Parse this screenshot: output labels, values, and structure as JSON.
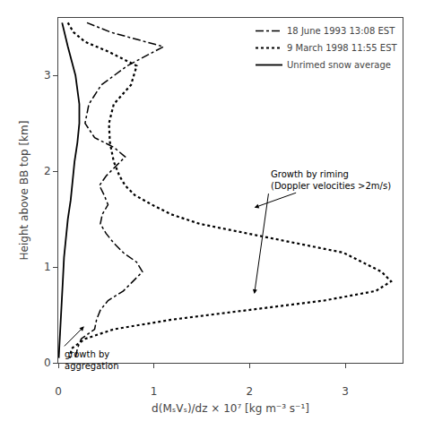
{
  "chart_data": {
    "type": "line",
    "xlabel": "d(MₛVₛ)/dz × 10⁷ [kg m⁻³ s⁻¹]",
    "ylabel": "Height above BB top [km]",
    "xlim": [
      0,
      3.6
    ],
    "ylim": [
      0,
      3.6
    ],
    "xticks": [
      0,
      1,
      2,
      3
    ],
    "yticks": [
      0,
      1,
      2,
      3
    ],
    "grid": false,
    "legend": "upper right",
    "series": [
      {
        "name": "18 June 1993 13:08 EST",
        "color": "#000000",
        "line_style": "dashdot",
        "x": [
          0.3,
          0.55,
          1.1,
          0.72,
          0.45,
          0.32,
          0.28,
          0.38,
          0.58,
          0.7,
          0.6,
          0.5,
          0.43,
          0.48,
          0.52,
          0.46,
          0.44,
          0.5,
          0.58,
          0.68,
          0.82,
          0.88,
          0.78,
          0.68,
          0.52,
          0.44,
          0.4,
          0.38,
          0.24,
          0.2,
          0.18
        ],
        "y": [
          3.55,
          3.45,
          3.3,
          3.1,
          2.9,
          2.7,
          2.5,
          2.35,
          2.25,
          2.15,
          2.05,
          1.95,
          1.85,
          1.75,
          1.65,
          1.55,
          1.45,
          1.35,
          1.25,
          1.15,
          1.05,
          0.95,
          0.85,
          0.75,
          0.65,
          0.55,
          0.45,
          0.35,
          0.25,
          0.15,
          0.05
        ]
      },
      {
        "name": "9 March 1998 11:55 EST",
        "color": "#000000",
        "line_style": "dotted",
        "x": [
          0.1,
          0.16,
          0.28,
          0.52,
          0.82,
          0.76,
          0.58,
          0.53,
          0.54,
          0.58,
          0.64,
          0.7,
          0.8,
          0.98,
          1.18,
          1.48,
          1.98,
          2.48,
          2.98,
          3.18,
          3.38,
          3.48,
          3.32,
          2.78,
          1.98,
          1.18,
          0.58,
          0.28,
          0.14,
          0.12
        ],
        "y": [
          3.55,
          3.45,
          3.35,
          3.25,
          3.1,
          2.9,
          2.7,
          2.5,
          2.3,
          2.1,
          1.95,
          1.85,
          1.75,
          1.65,
          1.55,
          1.45,
          1.35,
          1.25,
          1.15,
          1.05,
          0.95,
          0.85,
          0.75,
          0.65,
          0.55,
          0.45,
          0.35,
          0.25,
          0.15,
          0.05
        ]
      },
      {
        "name": "Unrimed snow average",
        "color": "#000000",
        "line_style": "solid",
        "x": [
          0.04,
          0.1,
          0.18,
          0.22,
          0.22,
          0.2,
          0.17,
          0.15,
          0.13,
          0.1,
          0.08,
          0.06,
          0.05,
          0.04,
          0.03,
          0.02,
          0.01,
          0.005
        ],
        "y": [
          3.55,
          3.3,
          3.0,
          2.7,
          2.5,
          2.3,
          2.1,
          1.9,
          1.7,
          1.5,
          1.3,
          1.1,
          0.9,
          0.7,
          0.5,
          0.3,
          0.15,
          0.05
        ]
      }
    ],
    "annotations": [
      {
        "text": "Growth by riming\n(Doppler velocities >2m/s)",
        "x": 2.05,
        "y": 0.72,
        "xytext": [
          2.2,
          1.78
        ]
      },
      {
        "x": 2.05,
        "y": 1.62,
        "xytext": [
          2.5,
          1.78
        ]
      },
      {
        "text": "growth by\naggregation",
        "x": 0.27,
        "y": 0.38,
        "xytext": [
          0.05,
          0.16
        ]
      }
    ]
  }
}
